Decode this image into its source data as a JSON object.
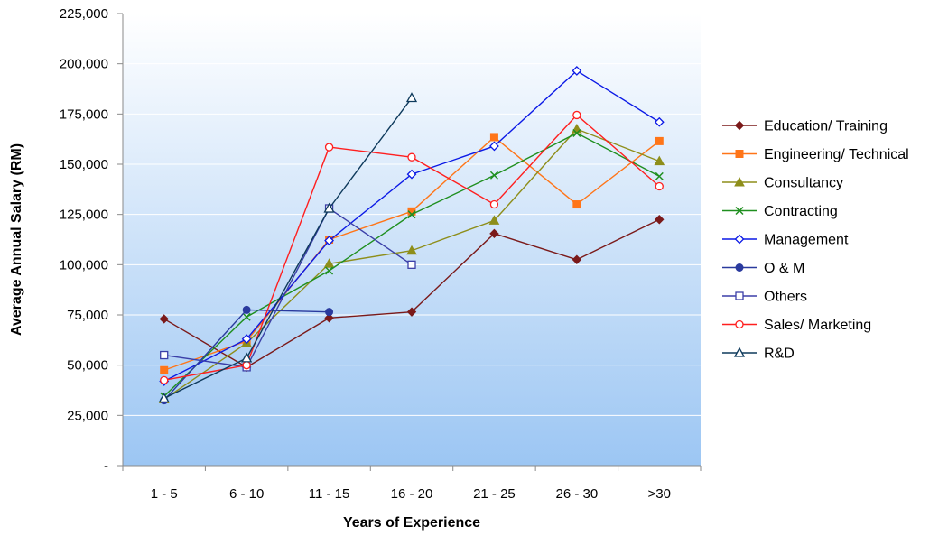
{
  "chart_data": {
    "type": "line",
    "xlabel": "Years of Experience",
    "ylabel": "Average Annual Salary (RM)",
    "categories": [
      "1 - 5",
      "6 - 10",
      "11 - 15",
      "16 - 20",
      "21 - 25",
      "26 - 30",
      ">30"
    ],
    "ylim": [
      0,
      225000
    ],
    "yticks": [
      0,
      25000,
      50000,
      75000,
      100000,
      125000,
      150000,
      175000,
      200000,
      225000
    ],
    "ytick_labels": [
      "-",
      "25,000",
      "50,000",
      "75,000",
      "100,000",
      "125,000",
      "150,000",
      "175,000",
      "200,000",
      "225,000"
    ],
    "grid": true,
    "legend_position": "right",
    "plot_background": "gradient white to light blue",
    "series": [
      {
        "name": "Education/ Training",
        "color": "#7b1a1a",
        "marker": "diamond-filled",
        "values": [
          73000,
          49000,
          73500,
          76500,
          115500,
          102500,
          122500
        ]
      },
      {
        "name": "Engineering/ Technical",
        "color": "#ff7518",
        "marker": "square-filled",
        "values": [
          47500,
          62000,
          112500,
          126500,
          163500,
          130000,
          161500
        ]
      },
      {
        "name": "Consultancy",
        "color": "#8e8e1a",
        "marker": "triangle-filled",
        "values": [
          33000,
          61000,
          100500,
          107000,
          122000,
          167500,
          151500
        ]
      },
      {
        "name": "Contracting",
        "color": "#1f8f1f",
        "marker": "x",
        "values": [
          34500,
          74000,
          97000,
          125000,
          144500,
          165500,
          144000
        ]
      },
      {
        "name": "Management",
        "color": "#0b19e6",
        "marker": "diamond-open",
        "values": [
          42000,
          63000,
          112000,
          145000,
          159000,
          196500,
          171000
        ]
      },
      {
        "name": "O & M",
        "color": "#2a3a9e",
        "marker": "circle-filled",
        "values": [
          32500,
          77500,
          76500,
          null,
          null,
          null,
          null
        ]
      },
      {
        "name": "Others",
        "color": "#3b3fa8",
        "marker": "square-open",
        "values": [
          55000,
          49000,
          128000,
          100000,
          null,
          null,
          null
        ]
      },
      {
        "name": "Sales/ Marketing",
        "color": "#ff1f1f",
        "marker": "circle-open",
        "values": [
          42500,
          50000,
          158500,
          153500,
          130000,
          174500,
          139000
        ]
      },
      {
        "name": "R&D",
        "color": "#0e3a5c",
        "marker": "triangle-open",
        "values": [
          33500,
          53500,
          128000,
          183000,
          null,
          null,
          null
        ]
      }
    ]
  }
}
